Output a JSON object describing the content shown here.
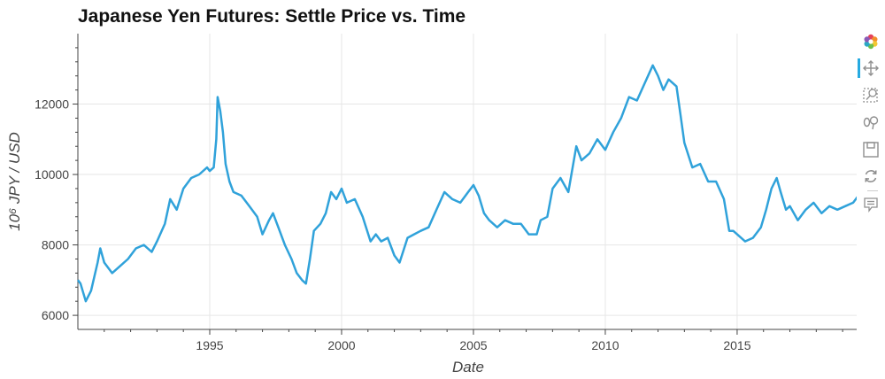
{
  "chart_data": {
    "type": "line",
    "title": "Japanese Yen Futures: Settle Price vs. Time",
    "xlabel": "Date",
    "ylabel": "10⁶ JPY / USD",
    "xlim": [
      1990.0,
      2019.6
    ],
    "ylim": [
      5600,
      14000
    ],
    "x_ticks": [
      1995,
      2000,
      2005,
      2010,
      2015
    ],
    "y_ticks": [
      6000,
      8000,
      10000,
      12000
    ],
    "grid": true,
    "line_color": "#30a2da",
    "series": [
      {
        "x": [
          1990.0,
          1990.1,
          1990.3,
          1990.5,
          1990.75,
          1990.85,
          1991.0,
          1991.3,
          1991.6,
          1991.9,
          1992.2,
          1992.5,
          1992.8,
          1993.0,
          1993.3,
          1993.5,
          1993.75,
          1994.0,
          1994.3,
          1994.6,
          1994.9,
          1995.0,
          1995.15,
          1995.25,
          1995.3,
          1995.4,
          1995.5,
          1995.6,
          1995.75,
          1995.9,
          1996.2,
          1996.5,
          1996.8,
          1997.0,
          1997.25,
          1997.4,
          1997.6,
          1997.85,
          1998.1,
          1998.3,
          1998.5,
          1998.65,
          1998.8,
          1998.95,
          1999.2,
          1999.4,
          1999.6,
          1999.8,
          2000.0,
          2000.2,
          2000.5,
          2000.8,
          2001.1,
          2001.3,
          2001.5,
          2001.75,
          2002.0,
          2002.2,
          2002.5,
          2002.75,
          2003.0,
          2003.3,
          2003.6,
          2003.9,
          2004.2,
          2004.5,
          2004.8,
          2005.0,
          2005.2,
          2005.4,
          2005.6,
          2005.9,
          2006.2,
          2006.5,
          2006.8,
          2007.1,
          2007.4,
          2007.55,
          2007.8,
          2008.0,
          2008.3,
          2008.6,
          2008.9,
          2009.1,
          2009.4,
          2009.7,
          2010.0,
          2010.3,
          2010.6,
          2010.9,
          2011.2,
          2011.5,
          2011.8,
          2012.0,
          2012.2,
          2012.4,
          2012.7,
          2012.85,
          2013.0,
          2013.3,
          2013.6,
          2013.9,
          2014.2,
          2014.5,
          2014.7,
          2014.85,
          2015.0,
          2015.3,
          2015.6,
          2015.9,
          2016.1,
          2016.3,
          2016.5,
          2016.65,
          2016.85,
          2017.0,
          2017.3,
          2017.6,
          2017.9,
          2018.2,
          2018.5,
          2018.8,
          2019.1,
          2019.4,
          2019.6
        ],
        "y": [
          7000,
          6900,
          6400,
          6700,
          7500,
          7900,
          7500,
          7200,
          7400,
          7600,
          7900,
          8000,
          7800,
          8100,
          8600,
          9300,
          9000,
          9600,
          9900,
          10000,
          10200,
          10100,
          10200,
          11000,
          12200,
          11800,
          11200,
          10300,
          9800,
          9500,
          9400,
          9100,
          8800,
          8300,
          8700,
          8900,
          8500,
          8000,
          7600,
          7200,
          7000,
          6900,
          7600,
          8400,
          8600,
          8900,
          9500,
          9300,
          9600,
          9200,
          9300,
          8800,
          8100,
          8300,
          8100,
          8200,
          7700,
          7500,
          8200,
          8300,
          8400,
          8500,
          9000,
          9500,
          9300,
          9200,
          9500,
          9700,
          9400,
          8900,
          8700,
          8500,
          8700,
          8600,
          8600,
          8300,
          8300,
          8700,
          8800,
          9600,
          9900,
          9500,
          10800,
          10400,
          10600,
          11000,
          10700,
          11200,
          11600,
          12200,
          12100,
          12600,
          13100,
          12800,
          12400,
          12700,
          12500,
          11700,
          10900,
          10200,
          10300,
          9800,
          9800,
          9300,
          8400,
          8400,
          8300,
          8100,
          8200,
          8500,
          9000,
          9600,
          9900,
          9500,
          9000,
          9100,
          8700,
          9000,
          9200,
          8900,
          9100,
          9000,
          9100,
          9200,
          9400
        ]
      }
    ]
  },
  "toolbar": {
    "tools": [
      "bokeh-logo",
      "pan",
      "box-zoom",
      "wheel-zoom",
      "save",
      "reset",
      "hover"
    ]
  }
}
